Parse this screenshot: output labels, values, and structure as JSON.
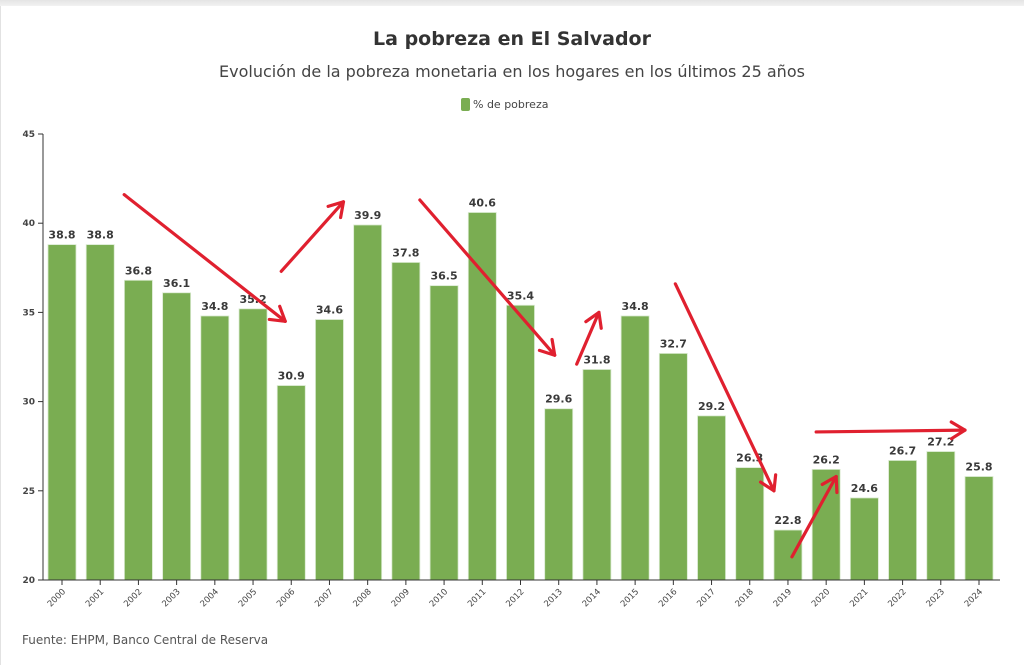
{
  "chart_data": {
    "type": "bar",
    "title": "La pobreza en El Salvador",
    "subtitle": "Evolución de la pobreza monetaria en los hogares en los últimos 25 años",
    "legend": {
      "label": "% de pobreza",
      "placement": "top-center"
    },
    "xlabel": "",
    "ylabel": "",
    "ylim": [
      20,
      45
    ],
    "yticks": [
      20,
      25,
      30,
      35,
      40,
      45
    ],
    "grid": false,
    "categories": [
      "2000",
      "2001",
      "2002",
      "2003",
      "2004",
      "2005",
      "2006",
      "2007",
      "2008",
      "2009",
      "2010",
      "2011",
      "2012",
      "2013",
      "2014",
      "2015",
      "2016",
      "2017",
      "2018",
      "2019",
      "2020",
      "2021",
      "2022",
      "2023",
      "2024"
    ],
    "series": [
      {
        "name": "% de pobreza",
        "values": [
          38.8,
          38.8,
          36.8,
          36.1,
          34.8,
          35.2,
          30.9,
          34.6,
          39.9,
          37.8,
          36.5,
          40.6,
          35.4,
          29.6,
          31.8,
          34.8,
          32.7,
          29.2,
          26.3,
          22.8,
          26.2,
          24.6,
          26.7,
          27.2,
          25.8
        ],
        "labels": [
          "38.8",
          "38.8",
          "36.8",
          "36.1",
          "34.8",
          "35.2",
          "30.9",
          "34.6",
          "39.9",
          "37.8",
          "36.5",
          "40.6",
          "35.4",
          "29.6",
          "31.8",
          "34.8",
          "32.7",
          "29.2",
          "26.3",
          "22.8",
          "26.2",
          "24.6",
          "26.7",
          "27.2",
          "25.8"
        ]
      }
    ],
    "annotations": {
      "type": "hand-drawn trend arrows",
      "arrows": [
        {
          "from": {
            "x": "2001",
            "y": 41.6
          },
          "to": {
            "x": "2006",
            "y": 34.5
          },
          "trend": "down"
        },
        {
          "from": {
            "x": "2006",
            "y": 37.3
          },
          "to": {
            "x": "2007",
            "y": 41.2
          },
          "trend": "up"
        },
        {
          "from": {
            "x": "2009",
            "y": 41.3
          },
          "to": {
            "x": "2013",
            "y": 32.6
          },
          "trend": "down"
        },
        {
          "from": {
            "x": "2013",
            "y": 32.1
          },
          "to": {
            "x": "2014",
            "y": 35.0
          },
          "trend": "up"
        },
        {
          "from": {
            "x": "2016",
            "y": 36.6
          },
          "to": {
            "x": "2019",
            "y": 25.0
          },
          "trend": "down"
        },
        {
          "from": {
            "x": "2019",
            "y": 21.3
          },
          "to": {
            "x": "2020",
            "y": 25.8
          },
          "trend": "up"
        },
        {
          "from": {
            "x": "2020",
            "y": 28.3
          },
          "to": {
            "x": "2024",
            "y": 28.4
          },
          "trend": "flat"
        }
      ]
    }
  },
  "colors": {
    "bar": "#7aad52",
    "arrow": "#e0202f",
    "axis": "#333333"
  },
  "footer": {
    "source": "Fuente: EHPM, Banco Central de Reserva"
  }
}
